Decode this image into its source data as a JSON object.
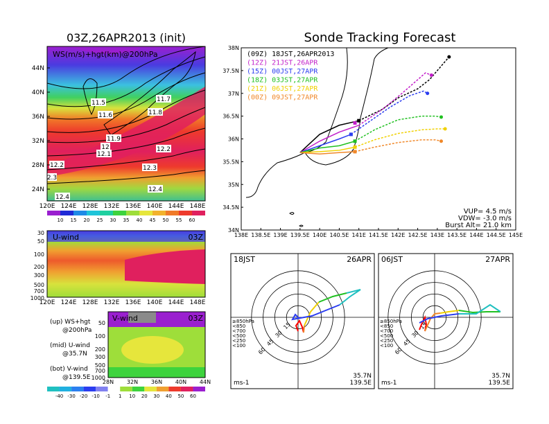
{
  "left": {
    "title": "03Z,26APR2013 (init)",
    "panel_label": "WS(m/s)+hgt(km)@200hPa",
    "lat_labels": [
      "44N",
      "40N",
      "36N",
      "32N",
      "28N",
      "24N"
    ],
    "lon_labels": [
      "120E",
      "124E",
      "128E",
      "132E",
      "136E",
      "140E",
      "144E",
      "148E"
    ],
    "contour_labels": [
      "11.5",
      "11.6",
      "11.7",
      "11.8",
      "11.9",
      "12",
      "12.1",
      "12.2",
      "12.2",
      "12.3",
      "12.4",
      "12.4",
      "2.3"
    ],
    "ws_colorbar": [
      "10",
      "15",
      "20",
      "25",
      "30",
      "35",
      "40",
      "45",
      "50",
      "55",
      "60"
    ],
    "ws_colors": [
      "#9a1fcf",
      "#1f2ad6",
      "#1e8ae6",
      "#1fc4d9",
      "#1fd0a0",
      "#3dd33d",
      "#9ede3a",
      "#e6e63c",
      "#f2b22c",
      "#f07a28",
      "#ee3a2c",
      "#e0205e"
    ]
  },
  "uwind": {
    "label": "U-wind",
    "time": "03Z",
    "p_labels": [
      "30",
      "50",
      "100",
      "200",
      "300",
      "500",
      "700",
      "1000"
    ],
    "lon_labels": [
      "120E",
      "124E",
      "128E",
      "132E",
      "136E",
      "140E",
      "144E",
      "148E"
    ]
  },
  "vwind": {
    "label": "V-wind",
    "time": "03Z",
    "p_labels": [
      "50",
      "100",
      "200",
      "300",
      "500",
      "700",
      "1000"
    ],
    "lat_labels": [
      "28N",
      "32N",
      "36N",
      "40N",
      "44N"
    ],
    "colorbar": [
      "-40",
      "-30",
      "-20",
      "-10",
      "-1",
      "1",
      "10",
      "20",
      "30",
      "40",
      "50",
      "60"
    ]
  },
  "legend_notes": {
    "up1": "(up) WS+hgt",
    "up2": "@200hPa",
    "mid1": "(mid) U-wind",
    "mid2": "@35.7N",
    "bot1": "(bot) V-wind",
    "bot2": "@139.5E"
  },
  "chart_data": {
    "type": "line",
    "title": "Sonde Tracking Forecast",
    "xlabel": "",
    "ylabel": "",
    "xlim": [
      138,
      145
    ],
    "ylim": [
      34,
      38
    ],
    "x_ticks": [
      "138E",
      "138.5E",
      "139E",
      "139.5E",
      "140E",
      "140.5E",
      "141E",
      "141.5E",
      "142E",
      "142.5E",
      "143E",
      "143.5E",
      "144E",
      "144.5E",
      "145E"
    ],
    "y_ticks": [
      "34N",
      "34.5N",
      "35N",
      "35.5N",
      "36N",
      "36.5N",
      "37N",
      "37.5N",
      "38N"
    ],
    "launch": {
      "lon": 139.5,
      "lat": 35.7
    },
    "series": [
      {
        "name": "(09Z) 18JST,26APR2013",
        "color": "#000000",
        "points": [
          [
            139.5,
            35.7
          ],
          [
            140.0,
            36.1
          ],
          [
            140.5,
            36.3
          ],
          [
            141.0,
            36.4
          ],
          [
            141.6,
            36.65
          ],
          [
            142.0,
            36.9
          ],
          [
            142.5,
            37.1
          ],
          [
            142.8,
            37.3
          ],
          [
            143.05,
            37.55
          ],
          [
            143.3,
            37.8
          ]
        ],
        "marker": [
          141.0,
          36.4
        ]
      },
      {
        "name": "(12Z) 21JST,26APR",
        "color": "#c21ec9",
        "points": [
          [
            139.5,
            35.7
          ],
          [
            140.0,
            35.95
          ],
          [
            140.5,
            36.15
          ],
          [
            141.0,
            36.3
          ],
          [
            141.6,
            36.65
          ],
          [
            142.1,
            37.0
          ],
          [
            142.5,
            37.3
          ],
          [
            142.7,
            37.45
          ],
          [
            142.85,
            37.4
          ]
        ],
        "marker": [
          140.9,
          36.35
        ]
      },
      {
        "name": "(15Z) 00JST,27APR",
        "color": "#2b3df0",
        "points": [
          [
            139.5,
            35.7
          ],
          [
            140.0,
            35.85
          ],
          [
            140.5,
            36.0
          ],
          [
            140.8,
            36.1
          ],
          [
            141.3,
            36.4
          ],
          [
            141.8,
            36.7
          ],
          [
            142.3,
            36.95
          ],
          [
            142.65,
            37.05
          ],
          [
            142.75,
            37.0
          ]
        ],
        "marker": [
          140.8,
          36.1
        ]
      },
      {
        "name": "(18Z) 03JST,27APR",
        "color": "#20c020",
        "points": [
          [
            139.5,
            35.7
          ],
          [
            140.0,
            35.8
          ],
          [
            140.5,
            35.85
          ],
          [
            140.9,
            35.95
          ],
          [
            141.4,
            36.2
          ],
          [
            142.0,
            36.42
          ],
          [
            142.6,
            36.5
          ],
          [
            142.95,
            36.5
          ],
          [
            143.1,
            36.48
          ]
        ],
        "marker": [
          140.9,
          35.95
        ]
      },
      {
        "name": "(21Z) 06JST,27APR",
        "color": "#f0d000",
        "points": [
          [
            139.5,
            35.7
          ],
          [
            140.0,
            35.72
          ],
          [
            140.5,
            35.75
          ],
          [
            140.9,
            35.82
          ],
          [
            141.4,
            35.98
          ],
          [
            142.0,
            36.12
          ],
          [
            142.6,
            36.2
          ],
          [
            143.0,
            36.22
          ],
          [
            143.2,
            36.22
          ]
        ],
        "marker": [
          140.9,
          35.82
        ]
      },
      {
        "name": "(00Z) 09JST,27APR",
        "color": "#f0882a",
        "points": [
          [
            139.5,
            35.7
          ],
          [
            140.0,
            35.67
          ],
          [
            140.5,
            35.7
          ],
          [
            140.9,
            35.72
          ],
          [
            141.4,
            35.82
          ],
          [
            142.0,
            35.92
          ],
          [
            142.6,
            35.98
          ],
          [
            142.95,
            35.98
          ],
          [
            143.1,
            35.95
          ]
        ],
        "marker": [
          140.9,
          35.72
        ]
      }
    ],
    "stats": {
      "vup": "VUP= 4.5 m/s",
      "vdw": "VDW= -3.0 m/s",
      "burst": "Burst Alt= 21.0 km"
    }
  },
  "polar1": {
    "time": "18JST",
    "date": "26APR",
    "loc1": "35.7N",
    "loc2": "139.5E",
    "unit": "ms-1"
  },
  "polar2": {
    "time": "06JST",
    "date": "27APR",
    "loc1": "35.7N",
    "loc2": "139.5E",
    "unit": "ms-1"
  },
  "polar_rings": [
    "15",
    "30",
    "45",
    "60"
  ],
  "polar_legend": [
    {
      "label": "≥850hPa",
      "color": "#ff0000"
    },
    {
      "label": "<850",
      "color": "#f0882a"
    },
    {
      "label": "<700",
      "color": "#f0d000"
    },
    {
      "label": "<500",
      "color": "#20c020"
    },
    {
      "label": "<250",
      "color": "#20c0c0"
    },
    {
      "label": "<100",
      "color": "#2b3df0"
    }
  ]
}
